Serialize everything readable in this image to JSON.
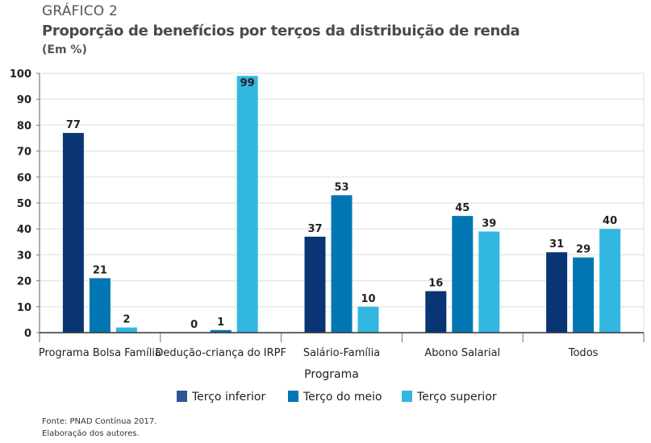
{
  "header": {
    "label": "GRÁFICO 2",
    "title": "Proporção de benefícios por terços da distribuição de renda",
    "unit": "(Em %)"
  },
  "footer": {
    "source": "Fonte: PNAD Contínua 2017.",
    "credit": "Elaboração dos autores."
  },
  "chart_data": {
    "type": "bar",
    "title": "Proporção de benefícios por terços da distribuição de renda",
    "subtitle": "(Em %)",
    "xlabel": "Programa",
    "ylabel": "",
    "ylim": [
      0,
      100
    ],
    "yticks": [
      0,
      10,
      20,
      30,
      40,
      50,
      60,
      70,
      80,
      90,
      100
    ],
    "grid": true,
    "legend_position": "bottom",
    "categories": [
      "Programa Bolsa Família",
      "Dedução-criança do IRPF",
      "Salário-Família",
      "Abono Salarial",
      "Todos"
    ],
    "series": [
      {
        "name": "Terço inferior",
        "color": "#0a3575",
        "values": [
          77,
          0,
          37,
          16,
          31
        ]
      },
      {
        "name": "Terço do meio",
        "color": "#0077b2",
        "values": [
          21,
          1,
          53,
          45,
          29
        ]
      },
      {
        "name": "Terço superior",
        "color": "#32b8e0",
        "values": [
          2,
          99,
          10,
          39,
          40
        ]
      }
    ],
    "legend_swatch_colors": [
      "#2f5596",
      "#0077b2",
      "#32b8e0"
    ]
  }
}
